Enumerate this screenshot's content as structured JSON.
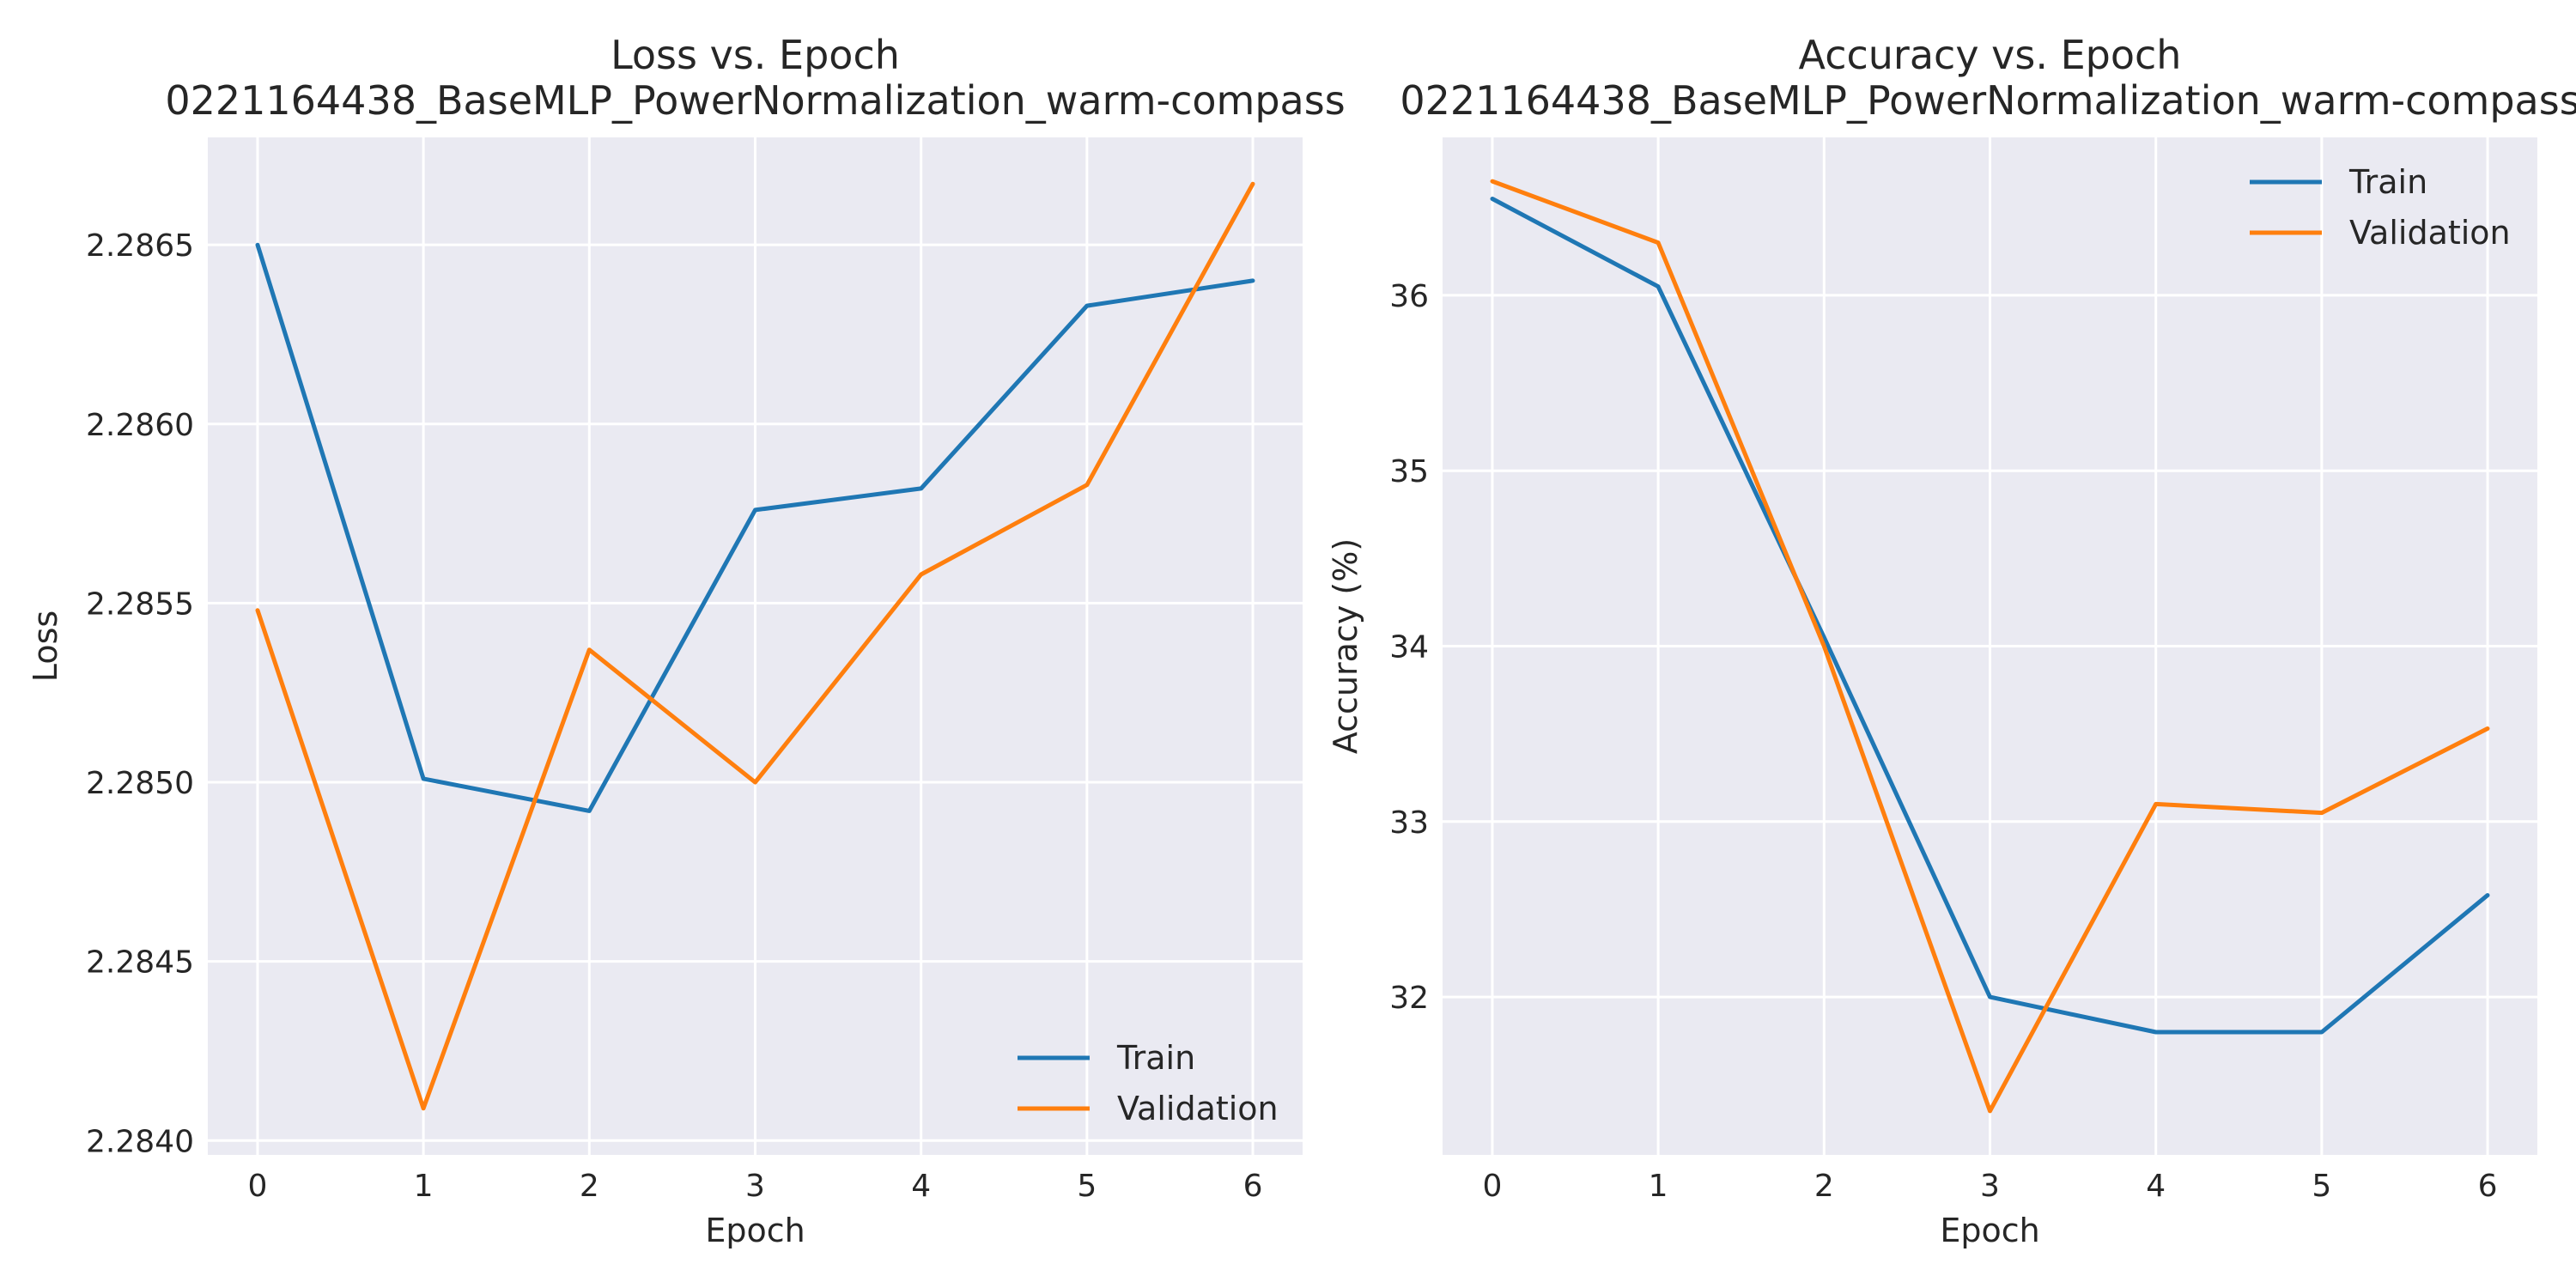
{
  "chart_data": [
    {
      "type": "line",
      "title": "Loss vs. Epoch",
      "subtitle": "0221164438_BaseMLP_PowerNormalization_warm-compass",
      "xlabel": "Epoch",
      "ylabel": "Loss",
      "x": [
        0,
        1,
        2,
        3,
        4,
        5,
        6
      ],
      "xticks": [
        "0",
        "1",
        "2",
        "3",
        "4",
        "5",
        "6"
      ],
      "yticks": [
        "2.2840",
        "2.2845",
        "2.2850",
        "2.2855",
        "2.2860",
        "2.2865"
      ],
      "ylim": [
        2.28396,
        2.2868
      ],
      "grid": true,
      "legend_position": "lower-right",
      "series": [
        {
          "name": "Train",
          "color": "#1f77b4",
          "values": [
            2.2865,
            2.28501,
            2.28492,
            2.28576,
            2.28582,
            2.28633,
            2.2864
          ]
        },
        {
          "name": "Validation",
          "color": "#ff7f0e",
          "values": [
            2.28548,
            2.28409,
            2.28537,
            2.285,
            2.28558,
            2.28583,
            2.28667
          ]
        }
      ]
    },
    {
      "type": "line",
      "title": "Accuracy vs. Epoch",
      "subtitle": "0221164438_BaseMLP_PowerNormalization_warm-compass",
      "xlabel": "Epoch",
      "ylabel": "Accuracy (%)",
      "x": [
        0,
        1,
        2,
        3,
        4,
        5,
        6
      ],
      "xticks": [
        "0",
        "1",
        "2",
        "3",
        "4",
        "5",
        "6"
      ],
      "yticks": [
        "32",
        "33",
        "34",
        "35",
        "36"
      ],
      "ylim": [
        31.1,
        36.9
      ],
      "grid": true,
      "legend_position": "upper-right",
      "series": [
        {
          "name": "Train",
          "color": "#1f77b4",
          "values": [
            36.55,
            36.05,
            34.05,
            32.0,
            31.8,
            31.8,
            32.58
          ]
        },
        {
          "name": "Validation",
          "color": "#ff7f0e",
          "values": [
            36.65,
            36.3,
            34.0,
            31.35,
            33.1,
            33.05,
            33.53
          ]
        }
      ]
    }
  ]
}
